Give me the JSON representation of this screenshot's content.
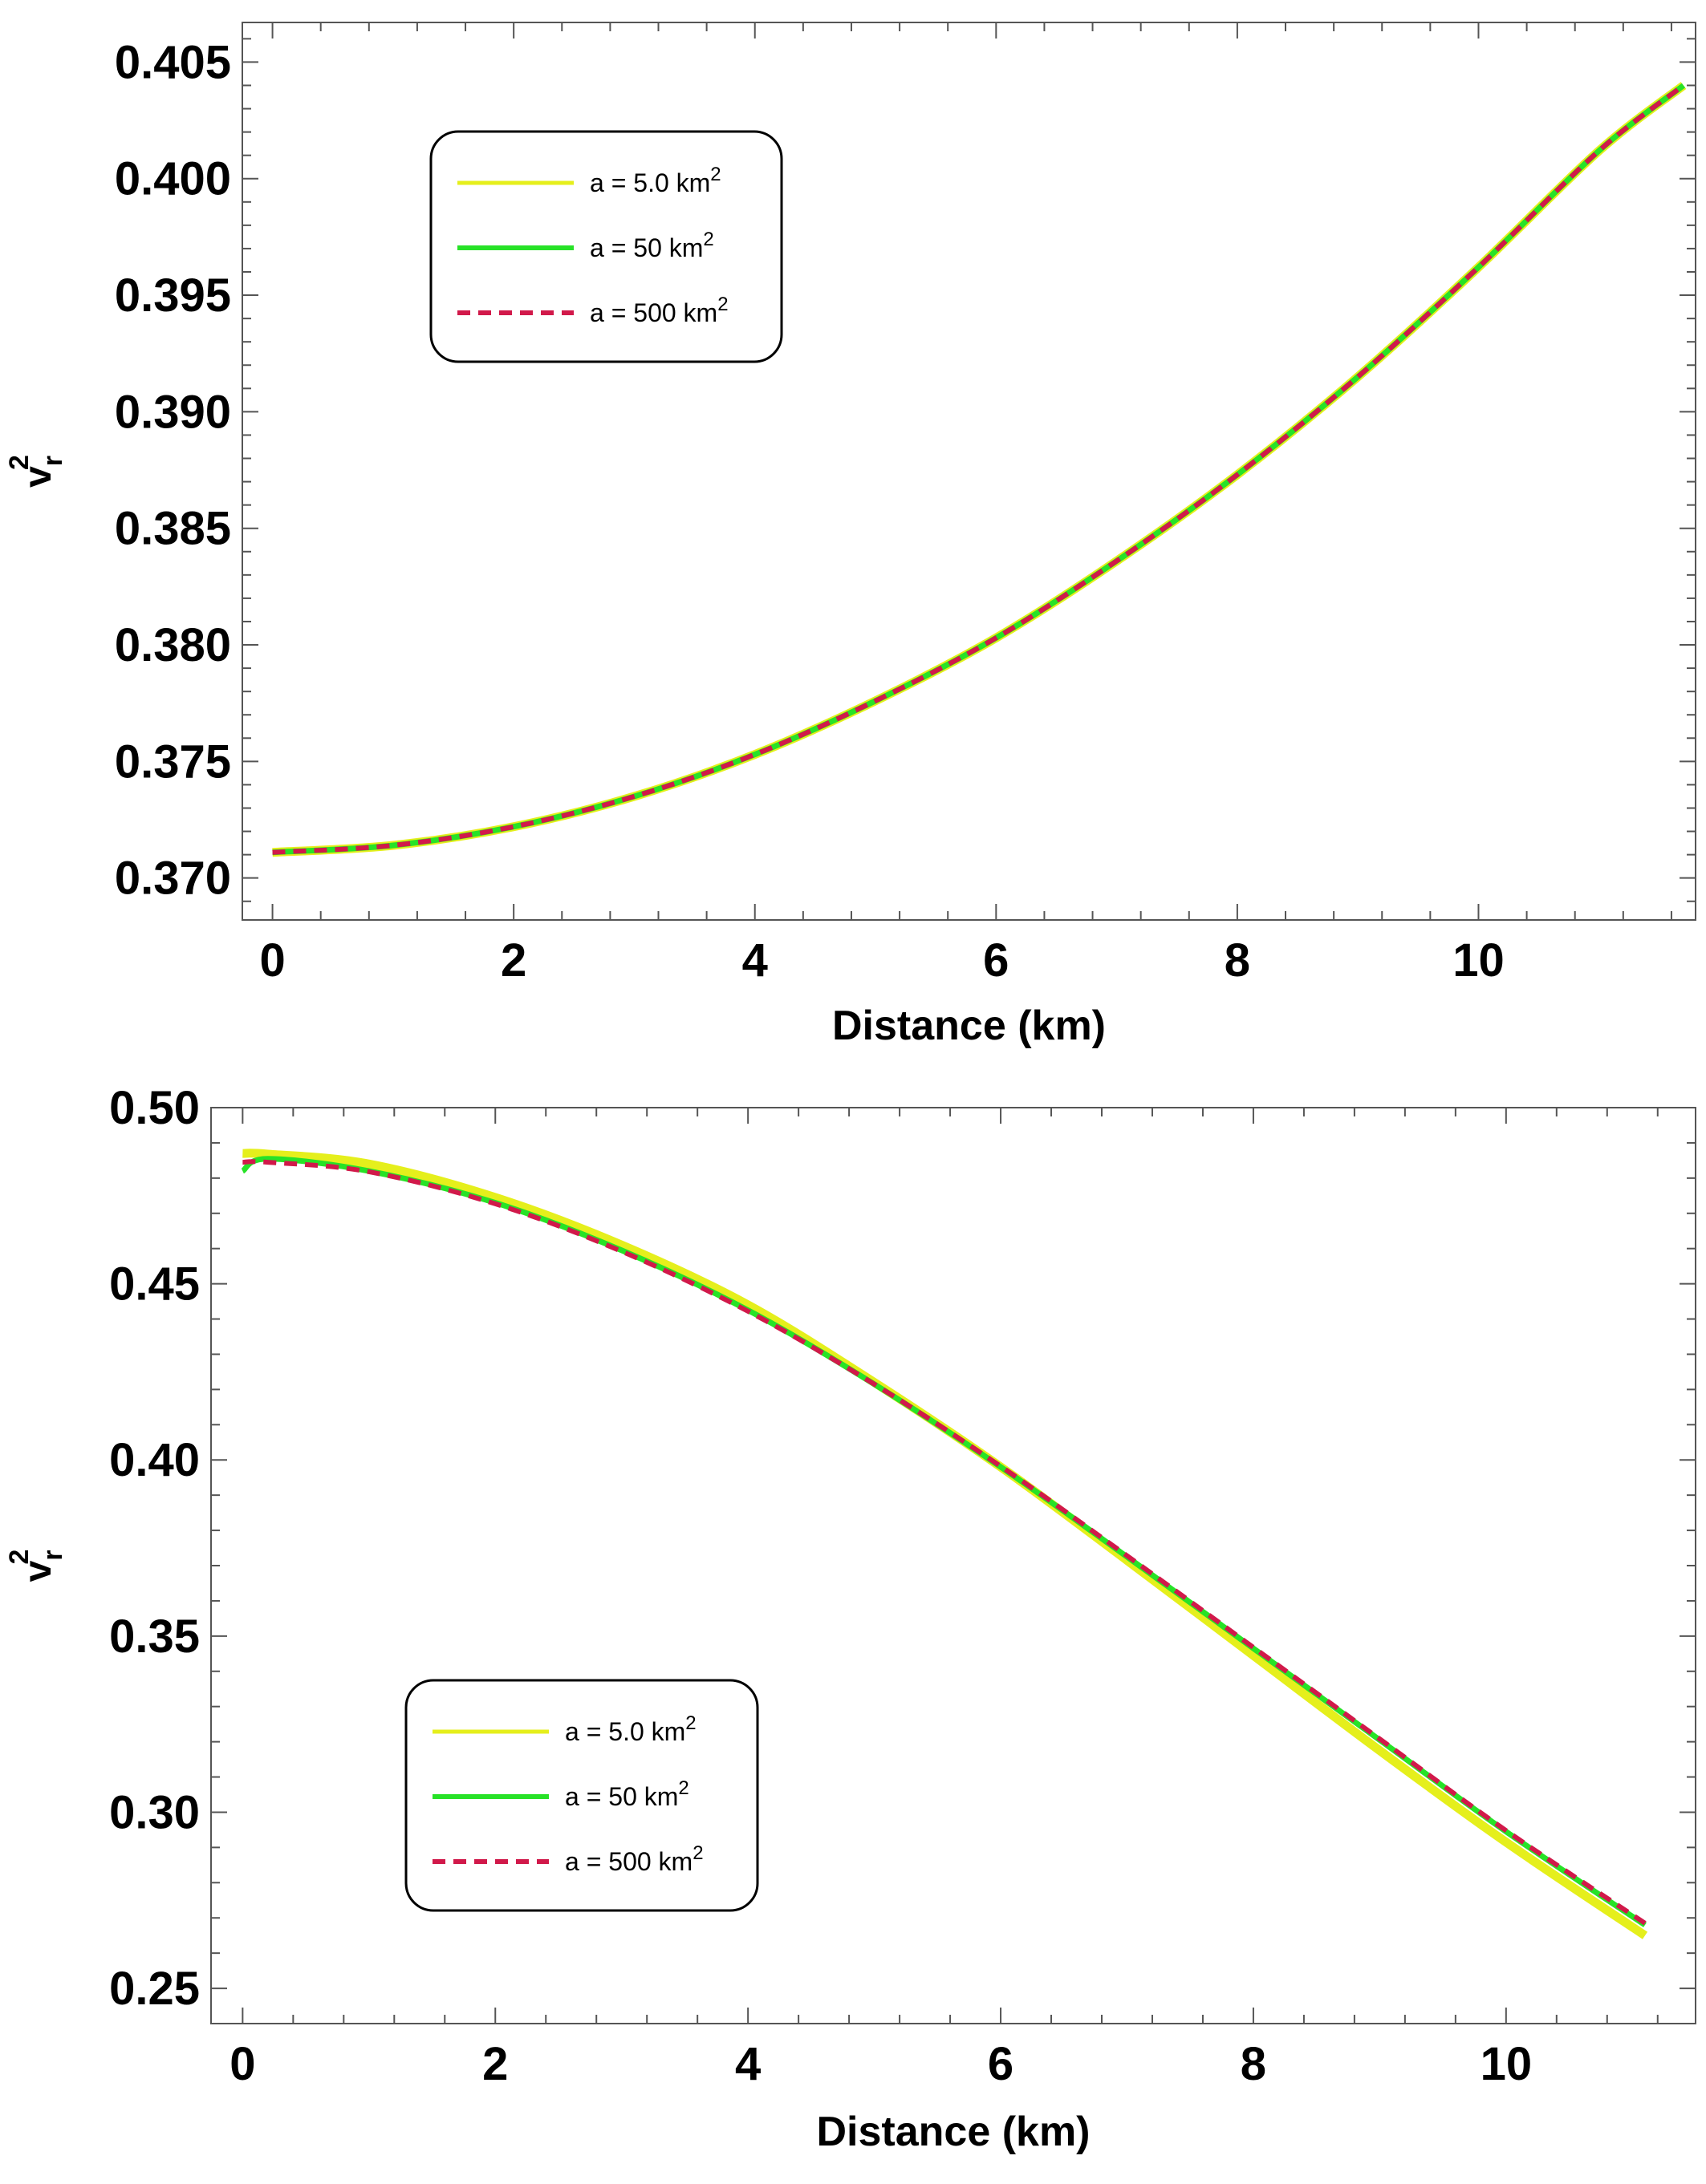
{
  "chart_data": [
    {
      "type": "line",
      "title": "",
      "xlabel": "Distance (km)",
      "ylabel": {
        "base": "v",
        "sub": "r",
        "sup": "2"
      },
      "xlim": [
        -0.25,
        11.8
      ],
      "ylim": [
        0.3682,
        0.4067
      ],
      "xticks": [
        0,
        2,
        4,
        6,
        8,
        10
      ],
      "yticks": [
        0.37,
        0.375,
        0.38,
        0.385,
        0.39,
        0.395,
        0.4,
        0.405
      ],
      "ytick_labels": [
        "0.370",
        "0.375",
        "0.380",
        "0.385",
        "0.390",
        "0.395",
        "0.400",
        "0.405"
      ],
      "legend_position": "top-left",
      "grid": false,
      "series": [
        {
          "name": "a = 5.0 km",
          "name_sup": "2",
          "color": "#e5ef1c",
          "style": "solid",
          "x": [
            0,
            1,
            2,
            3,
            4,
            5,
            6,
            7,
            8,
            9,
            10,
            11,
            11.7
          ],
          "y": [
            0.3711,
            0.3714,
            0.3722,
            0.3735,
            0.3753,
            0.3776,
            0.3803,
            0.3836,
            0.3873,
            0.3915,
            0.3962,
            0.4012,
            0.404
          ]
        },
        {
          "name": "a = 50 km",
          "name_sup": "2",
          "color": "#27e227",
          "style": "solid",
          "x": [
            0,
            1,
            2,
            3,
            4,
            5,
            6,
            7,
            8,
            9,
            10,
            11,
            11.7
          ],
          "y": [
            0.3711,
            0.3714,
            0.3722,
            0.3735,
            0.3753,
            0.3776,
            0.3803,
            0.3836,
            0.3873,
            0.3915,
            0.3962,
            0.4012,
            0.404
          ]
        },
        {
          "name": "a = 500 km",
          "name_sup": "2",
          "color": "#d1194a",
          "style": "dashed",
          "x": [
            0,
            1,
            2,
            3,
            4,
            5,
            6,
            7,
            8,
            9,
            10,
            11,
            11.7
          ],
          "y": [
            0.3711,
            0.3714,
            0.3722,
            0.3735,
            0.3753,
            0.3776,
            0.3803,
            0.3836,
            0.3873,
            0.3915,
            0.3962,
            0.4012,
            0.404
          ]
        }
      ]
    },
    {
      "type": "line",
      "title": "",
      "xlabel": "Distance (km)",
      "ylabel": {
        "base": "v",
        "sub": "r",
        "sup": "2"
      },
      "xlim": [
        -0.25,
        11.5
      ],
      "ylim": [
        0.24,
        0.5
      ],
      "xticks": [
        0,
        2,
        4,
        6,
        8,
        10
      ],
      "yticks": [
        0.25,
        0.3,
        0.35,
        0.4,
        0.45,
        0.5
      ],
      "ytick_labels": [
        "0.25",
        "0.30",
        "0.35",
        "0.40",
        "0.45",
        "0.50"
      ],
      "legend_position": "bottom-left",
      "grid": false,
      "series": [
        {
          "name": "a = 5.0 km",
          "name_sup": "2",
          "color": "#e5ef1c",
          "style": "solid",
          "x": [
            0,
            0.2,
            1,
            2,
            3,
            4,
            5,
            6,
            7,
            8,
            9,
            10,
            11.1
          ],
          "y": [
            0.487,
            0.4868,
            0.484,
            0.4745,
            0.461,
            0.444,
            0.422,
            0.398,
            0.3715,
            0.3445,
            0.3175,
            0.2915,
            0.265
          ]
        },
        {
          "name": "a = 50 km",
          "name_sup": "2",
          "color": "#27e227",
          "style": "solid",
          "x": [
            0,
            0.2,
            1,
            2,
            3,
            4,
            5,
            6,
            7,
            8,
            9,
            10,
            11.1
          ],
          "y": [
            0.482,
            0.4855,
            0.482,
            0.473,
            0.4595,
            0.4425,
            0.4215,
            0.398,
            0.3725,
            0.3465,
            0.3205,
            0.2945,
            0.268
          ]
        },
        {
          "name": "a = 500 km",
          "name_sup": "2",
          "color": "#d1194a",
          "style": "dashed",
          "x": [
            0,
            0.2,
            1,
            2,
            3,
            4,
            5,
            6,
            7,
            8,
            9,
            10,
            11.1
          ],
          "y": [
            0.4845,
            0.4845,
            0.4818,
            0.4727,
            0.4592,
            0.4422,
            0.4215,
            0.3982,
            0.3728,
            0.3468,
            0.3208,
            0.2948,
            0.2685
          ]
        }
      ]
    }
  ]
}
